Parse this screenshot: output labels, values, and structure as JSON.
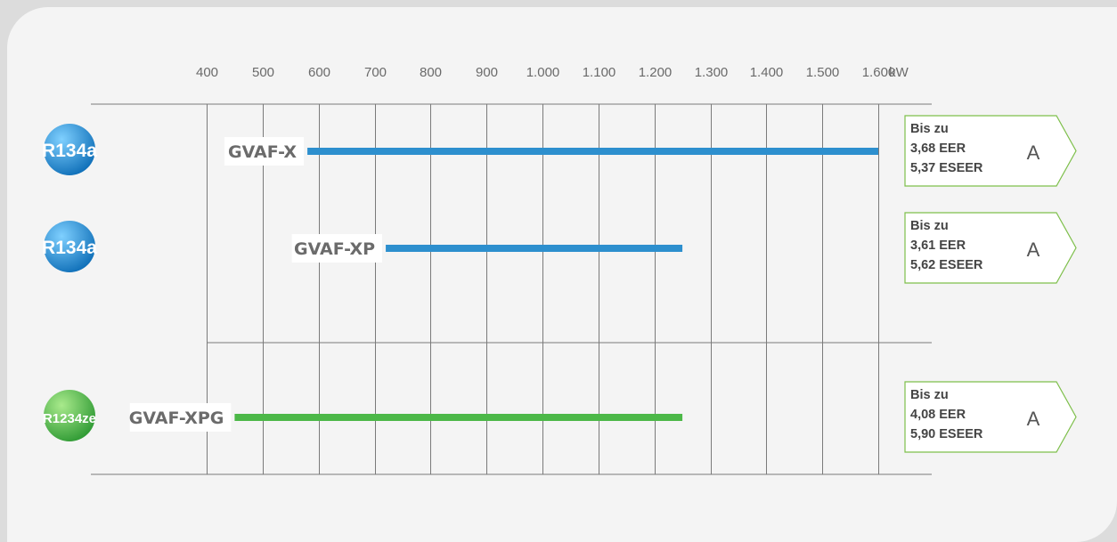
{
  "chart_data": {
    "type": "bar",
    "orientation": "horizontal-range",
    "unit": "kW",
    "xlim": [
      400,
      1600
    ],
    "x_ticks": [
      {
        "value": 400,
        "label": "400"
      },
      {
        "value": 500,
        "label": "500"
      },
      {
        "value": 600,
        "label": "600"
      },
      {
        "value": 700,
        "label": "700"
      },
      {
        "value": 800,
        "label": "800"
      },
      {
        "value": 900,
        "label": "900"
      },
      {
        "value": 1000,
        "label": "1.000"
      },
      {
        "value": 1100,
        "label": "1.100"
      },
      {
        "value": 1200,
        "label": "1.200"
      },
      {
        "value": 1300,
        "label": "1.300"
      },
      {
        "value": 1400,
        "label": "1.400"
      },
      {
        "value": 1500,
        "label": "1.500"
      },
      {
        "value": 1600,
        "label": "1.600"
      }
    ],
    "grid": true,
    "series": [
      {
        "name": "GVAF-X",
        "refrigerant": "R134a",
        "refrigerant_color": "#1f8fd6",
        "color": "#2d8fce",
        "range": [
          580,
          1600
        ],
        "rating": {
          "line1": "Bis zu",
          "line2": "3,68 EER",
          "line3": "5,37 ESEER",
          "class": "A"
        }
      },
      {
        "name": "GVAF-XP",
        "refrigerant": "R134a",
        "refrigerant_color": "#1f8fd6",
        "color": "#2d8fce",
        "range": [
          720,
          1250
        ],
        "rating": {
          "line1": "Bis zu",
          "line2": "3,61 EER",
          "line3": "5,62 ESEER",
          "class": "A"
        }
      },
      {
        "name": "GVAF-XPG",
        "refrigerant": "R1234ze",
        "refrigerant_color": "#3bb54a",
        "color": "#4cb848",
        "range": [
          450,
          1250
        ],
        "rating": {
          "line1": "Bis zu",
          "line2": "4,08 EER",
          "line3": "5,90 ESEER",
          "class": "A"
        }
      }
    ],
    "rating_border_color": "#7dbf4a"
  }
}
